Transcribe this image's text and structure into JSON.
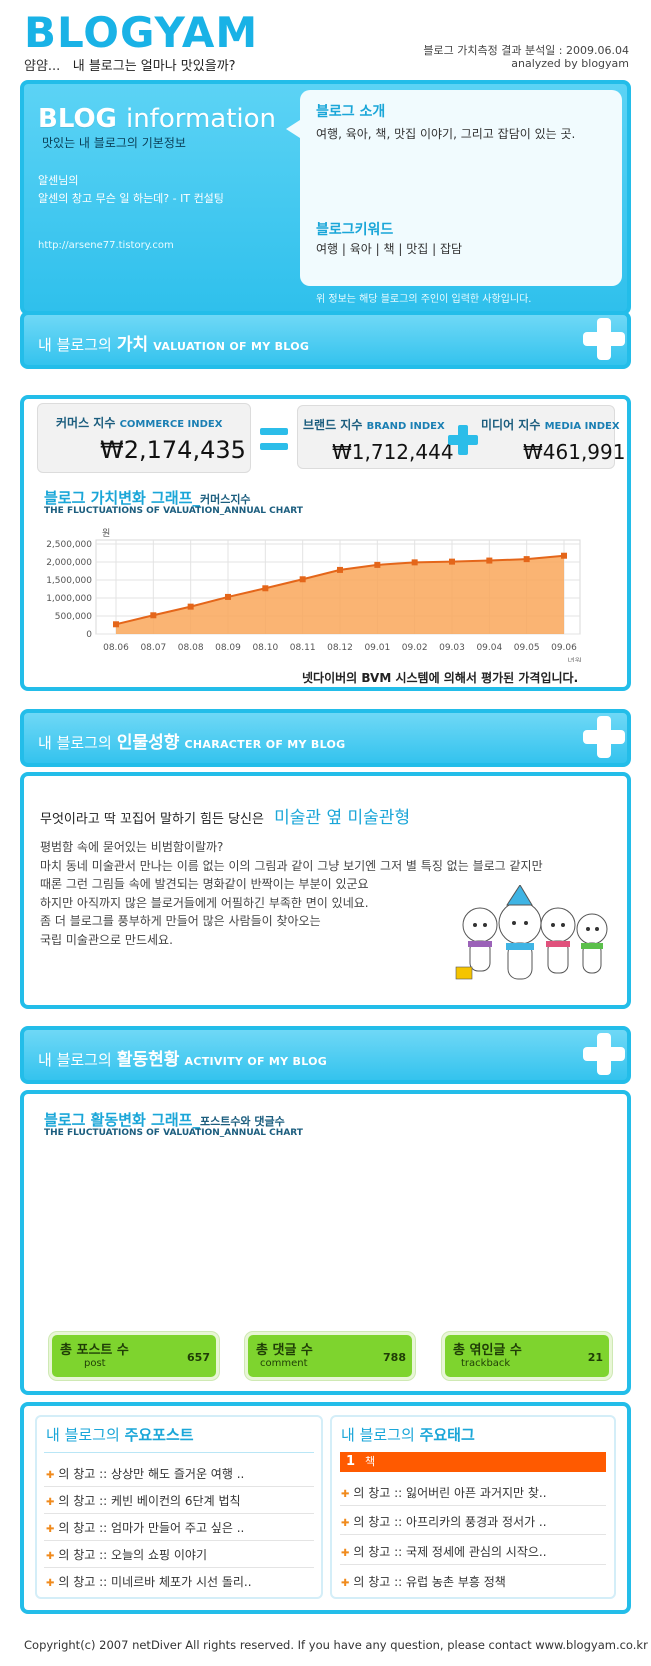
{
  "header": {
    "logo": "BLOGYAM",
    "tagline_prefix": "얌얌...",
    "tagline": "내 블로그는 얼마나 맛있을까?",
    "analysis_date": "블로그 가치측정 결과 분석일 : 2009.06.04",
    "analyzed_by": "analyzed by blogyam"
  },
  "info": {
    "title_blog": "BLOG",
    "title_info": "information",
    "subtitle": "맛있는 내 블로그의 기본정보",
    "owner_name": "알센님의",
    "owner_desc": "알센의 창고 무슨 일 하는데? - IT 컨설팅",
    "url": "http://arsene77.tistory.com",
    "intro_title": "블로그 소개",
    "intro_text": "여행, 육아, 책, 맛집 이야기, 그리고 잡담이 있는 곳.",
    "keyword_title": "블로그키워드",
    "keywords": "여행 | 육아 | 책 | 맛집 | 잡담",
    "note": "위 정보는 해당 블로그의 주인이 입력한 사항입니다."
  },
  "valuation": {
    "bar_prefix": "내 블로그의",
    "bar_title": "가치",
    "bar_eng": "VALUATION OF MY BLOG",
    "commerce_label": "커머스 지수",
    "commerce_en": "COMMERCE INDEX",
    "commerce_value": "₩2,174,435",
    "brand_label": "브랜드 지수",
    "brand_en": "BRAND INDEX",
    "brand_value": "₩1,712,444",
    "media_label": "미디어 지수",
    "media_en": "MEDIA INDEX",
    "media_value": "₩461,991",
    "graph_title": "블로그 가치변화 그래프_",
    "graph_title_small": "커머스지수",
    "graph_sub": "THE FLUCTUATIONS OF VALUATION_ANNUAL CHART",
    "note": "넷다이버의 BVM 시스템에 의해서 평가된 가격입니다."
  },
  "chart_data": {
    "type": "area",
    "ylabel": "원",
    "xlabel": "년월",
    "categories": [
      "08.06",
      "08.07",
      "08.08",
      "08.09",
      "08.10",
      "08.11",
      "08.12",
      "09.01",
      "09.02",
      "09.03",
      "09.04",
      "09.05",
      "09.06"
    ],
    "ytick_labels": [
      "2,500,000",
      "2,000,000",
      "1,500,000",
      "1,000,000",
      "500,000",
      "0"
    ],
    "ylim": [
      0,
      2500000
    ],
    "series": [
      {
        "values": [
          270000,
          520000,
          760000,
          1030000,
          1270000,
          1520000,
          1780000,
          1920000,
          1990000,
          2010000,
          2040000,
          2080000,
          2174435
        ]
      }
    ],
    "grid": true,
    "colors": {
      "fill": "#f9a75a",
      "line": "#e4661a",
      "marker": "#e4661a"
    }
  },
  "character": {
    "bar_prefix": "내 블로그의",
    "bar_title": "인물성향",
    "bar_eng": "CHARACTER OF MY BLOG",
    "question": "무엇이라고 딱 꼬집어 말하기 힘든 당신은",
    "type": "미술관 옆 미술관형",
    "lines": [
      "평범함 속에 묻어있는 비범함이랄까?",
      "마치 동네 미술관서 만나는 이름 없는 이의 그림과 같이 그냥 보기엔 그저 별 특징 없는 블로그 같지만",
      "때론 그런 그림들 속에 발견되는 명화같이 반짝이는 부분이 있군요",
      "하지만 아직까지 많은 블로거들에게 어필하긴 부족한 면이 있네요.",
      "좀 더 블로그를 풍부하게 만들어 많은 사람들이 찾아오는",
      "국립 미술관으로 만드세요."
    ]
  },
  "activity": {
    "bar_prefix": "내 블로그의",
    "bar_title": "활동현황",
    "bar_eng": "ACTIVITY OF MY BLOG",
    "graph_title": "블로그 활동변화 그래프_",
    "graph_title_small": "포스트수와 댓글수",
    "graph_sub": "THE FLUCTUATIONS OF VALUATION_ANNUAL CHART",
    "badges": [
      {
        "title": "총 포스트 수",
        "sub": "post",
        "value": "657"
      },
      {
        "title": "총 댓글 수",
        "sub": "comment",
        "value": "788"
      },
      {
        "title": "총 엮인글 수",
        "sub": "trackback",
        "value": "21"
      }
    ]
  },
  "posts": {
    "title_prefix": "내 블로그의",
    "title": "주요포스트",
    "items": [
      "의 창고 :: 상상만 해도 즐거운 여행 ..",
      "의 창고 :: 케빈 베이컨의 6단계 법칙",
      "의 창고 :: 엄마가 만들어 주고 싶은 ..",
      "의 창고 :: 오늘의 쇼핑 이야기",
      "의 창고 :: 미네르바 체포가 시선 돌리.."
    ]
  },
  "tags": {
    "title_prefix": "내 블로그의",
    "title": "주요태그",
    "top_rank": "1",
    "top_tag": "책",
    "items": [
      "의 창고 :: 잃어버린 아픈 과거지만 찾..",
      "의 창고 :: 아프리카의 풍경과 정서가 ..",
      "의 창고 :: 국제 정세에 관심의 시작으..",
      "의 창고 :: 유럽 농촌 부흥 정책"
    ]
  },
  "footer": "Copyright(c) 2007 netDiver All rights reserved. If you have any question, please contact www.blogyam.co.kr"
}
